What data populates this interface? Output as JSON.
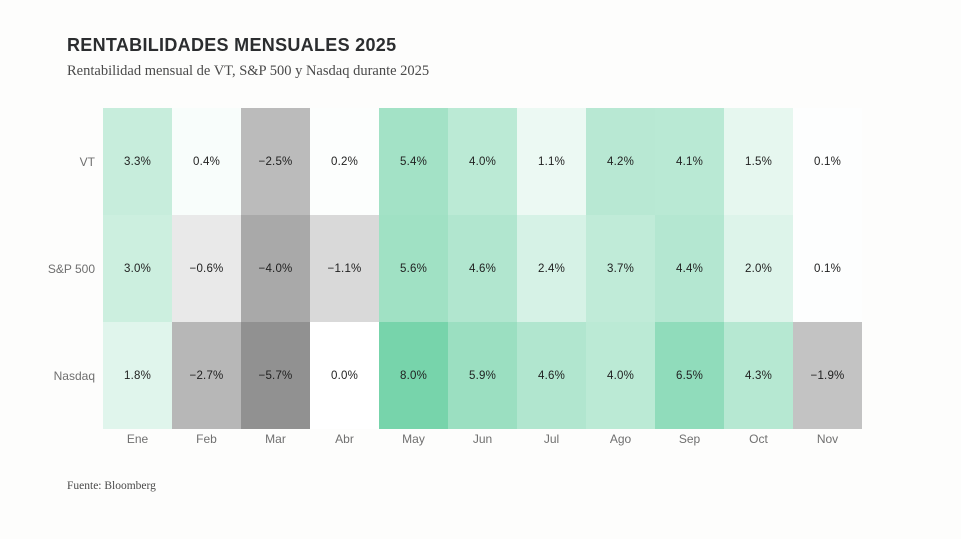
{
  "page": {
    "title": "RENTABILIDADES MENSUALES 2025",
    "subtitle": "Rentabilidad mensual de VT, S&P 500 y Nasdaq durante 2025",
    "source": "Fuente: Bloomberg"
  },
  "chart_data": {
    "type": "heatmap",
    "title": "RENTABILIDADES MENSUALES 2025",
    "subtitle": "Rentabilidad mensual de VT, S&P 500 y Nasdaq durante 2025",
    "source": "Fuente: Bloomberg",
    "unit": "%",
    "categories": [
      "Ene",
      "Feb",
      "Mar",
      "Abr",
      "May",
      "Jun",
      "Jul",
      "Ago",
      "Sep",
      "Oct",
      "Nov"
    ],
    "series": [
      {
        "name": "VT",
        "values": [
          3.3,
          0.4,
          -2.5,
          0.2,
          5.4,
          4.0,
          1.1,
          4.2,
          4.1,
          1.5,
          0.1
        ],
        "colors": [
          "#c7eddc",
          "#f8fdfb",
          "#bbbbbb",
          "#fcfefd",
          "#a3e2c6",
          "#bbead5",
          "#ecf9f3",
          "#b8e8d3",
          "#b9e9d4",
          "#e6f7ef",
          "#fdfefe"
        ]
      },
      {
        "name": "S&P 500",
        "values": [
          3.0,
          -0.6,
          -4.0,
          -1.1,
          5.6,
          4.6,
          2.4,
          3.7,
          4.4,
          2.0,
          0.1
        ],
        "colors": [
          "#ccefdf",
          "#e9e9e9",
          "#a9a9a9",
          "#d9d9d9",
          "#a0e1c4",
          "#b1e6cf",
          "#d6f2e6",
          "#c0ebd8",
          "#b4e7d1",
          "#ddf4ea",
          "#fdfefe"
        ]
      },
      {
        "name": "Nasdaq",
        "values": [
          1.8,
          -2.7,
          -5.7,
          0.0,
          8.0,
          5.9,
          4.6,
          4.0,
          6.5,
          4.3,
          -1.9
        ],
        "colors": [
          "#e0f5ec",
          "#b7b7b7",
          "#919191",
          "#ffffff",
          "#77d4ab",
          "#9bdfc1",
          "#b1e6cf",
          "#bbead5",
          "#90dcbb",
          "#b6e8d2",
          "#c3c3c3"
        ]
      }
    ],
    "colormap": {
      "positive_max_value": 8.0,
      "positive_max_color": "#77d4ab",
      "zero_color": "#ffffff",
      "negative_min_value": -5.7,
      "negative_min_color": "#919191"
    },
    "legend": "none",
    "grid": "off",
    "value_label_format": "one decimal with % suffix, unicode minus for negatives"
  }
}
